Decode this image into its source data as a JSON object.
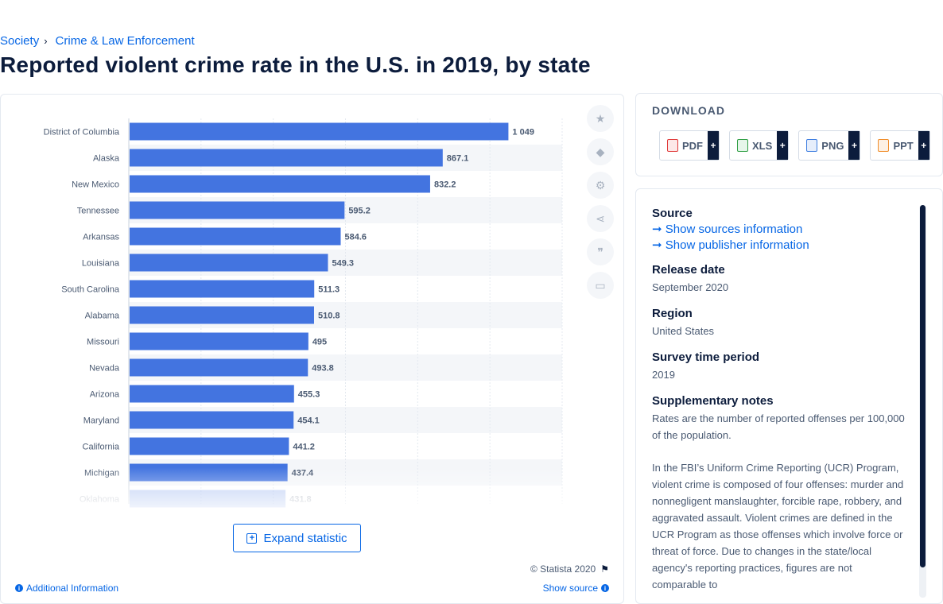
{
  "breadcrumb": {
    "item1": "Society",
    "item2": "Crime & Law Enforcement"
  },
  "page_title": "Reported violent crime rate in the U.S. in 2019, by state",
  "chart_data": {
    "type": "bar",
    "orientation": "horizontal",
    "categories": [
      "District of Columbia",
      "Alaska",
      "New Mexico",
      "Tennessee",
      "Arkansas",
      "Louisiana",
      "South Carolina",
      "Alabama",
      "Missouri",
      "Nevada",
      "Arizona",
      "Maryland",
      "California",
      "Michigan",
      "Oklahoma"
    ],
    "values": [
      1049,
      867.1,
      832.2,
      595.2,
      584.6,
      549.3,
      511.3,
      510.8,
      495,
      493.8,
      455.3,
      454.1,
      441.2,
      437.4,
      431.8
    ],
    "value_labels": [
      "1 049",
      "867.1",
      "832.2",
      "595.2",
      "584.6",
      "549.3",
      "511.3",
      "510.8",
      "495",
      "493.8",
      "455.3",
      "454.1",
      "441.2",
      "437.4",
      "431.8"
    ],
    "xlim": [
      0,
      1200
    ],
    "grid": true,
    "bar_color": "#4374e0"
  },
  "toolbar": {
    "icons": [
      "star-icon",
      "bell-icon",
      "gear-icon",
      "share-icon",
      "quote-icon",
      "print-icon"
    ],
    "icon_glyphs": [
      "★",
      "🔔",
      "⚙",
      "⟨",
      "❝",
      "⎙"
    ]
  },
  "expand_label": "Expand statistic",
  "copyright": "© Statista 2020",
  "additional_info": "Additional Information",
  "show_source": "Show source",
  "download": {
    "title": "DOWNLOAD",
    "buttons": [
      {
        "label": "PDF",
        "color": "#e03a3a"
      },
      {
        "label": "XLS",
        "color": "#2f9e44"
      },
      {
        "label": "PNG",
        "color": "#3d7de0"
      },
      {
        "label": "PPT",
        "color": "#f08c28"
      }
    ],
    "plus": "+"
  },
  "details": {
    "source_head": "Source",
    "show_sources": "Show sources information",
    "show_publisher": "Show publisher information",
    "release_head": "Release date",
    "release_val": "September 2020",
    "region_head": "Region",
    "region_val": "United States",
    "period_head": "Survey time period",
    "period_val": "2019",
    "notes_head": "Supplementary notes",
    "notes_val": "Rates are the number of reported offenses per 100,000 of the population.",
    "notes_para": "In the FBI’s Uniform Crime Reporting (UCR) Program, violent crime is composed of four offenses: murder and nonnegligent manslaughter, forcible rape, robbery, and aggravated assault. Violent crimes are defined in the UCR Program as those offenses which involve force or threat of force. Due to changes in the state/local agency's reporting practices, figures are not comparable to"
  }
}
